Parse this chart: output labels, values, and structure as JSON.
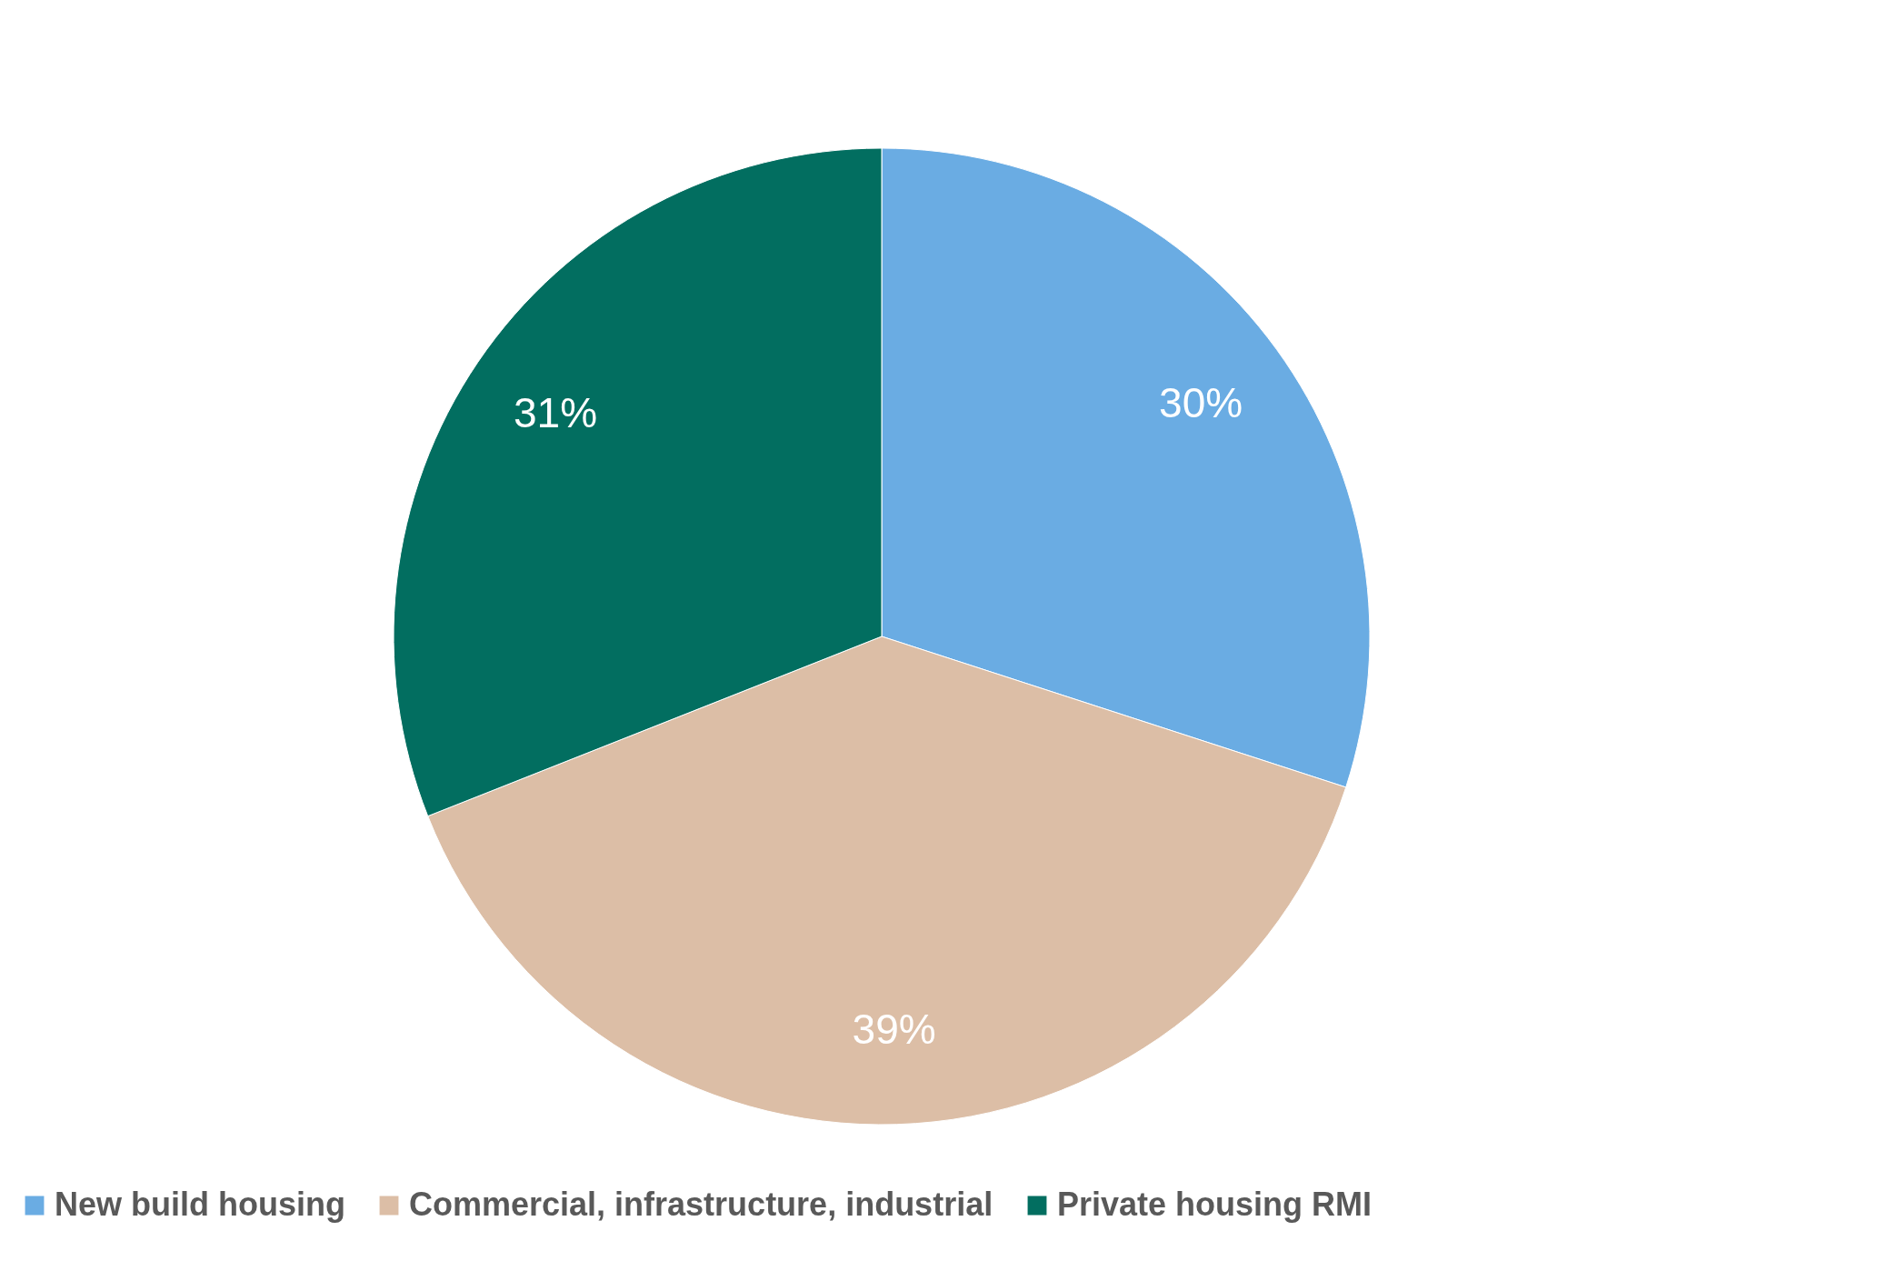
{
  "chart_data": {
    "type": "pie",
    "categories": [
      "New build housing",
      "Commercial, infrastructure, industrial",
      "Private housing RMI"
    ],
    "values": [
      30,
      39,
      31
    ],
    "colors": [
      "#6aace3",
      "#dcbea6",
      "#026e60"
    ],
    "value_labels": [
      "30%",
      "39%",
      "31%"
    ],
    "legend": "bottom"
  }
}
